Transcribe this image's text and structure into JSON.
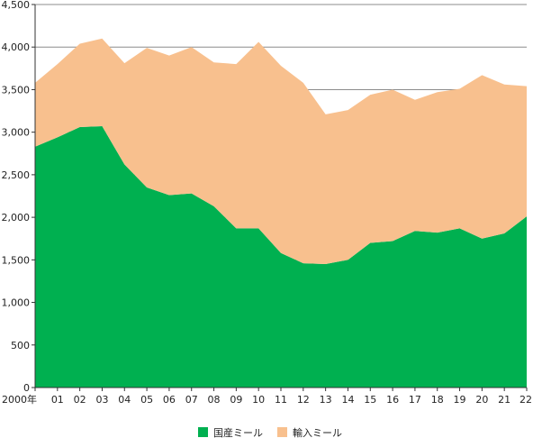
{
  "chart_data": {
    "type": "area",
    "stacked": true,
    "title": "",
    "xlabel": "",
    "ylabel": "",
    "ylim": [
      0,
      4500
    ],
    "yticks": [
      0,
      500,
      1000,
      1500,
      2000,
      2500,
      3000,
      3500,
      4000,
      4500
    ],
    "ytick_labels": [
      "0",
      "500",
      "1,000",
      "1,500",
      "2,000",
      "2,500",
      "3,000",
      "3,500",
      "4,000",
      "4,500"
    ],
    "x_labels": [
      "2000年",
      "01",
      "02",
      "03",
      "04",
      "05",
      "06",
      "07",
      "08",
      "09",
      "10",
      "11",
      "12",
      "13",
      "14",
      "15",
      "16",
      "17",
      "18",
      "19",
      "20",
      "21",
      "22"
    ],
    "grid": "horizontal",
    "legend_position": "bottom",
    "series": [
      {
        "name": "国産ミール",
        "color": "#00b050",
        "values": [
          2830,
          2940,
          3060,
          3070,
          2620,
          2350,
          2260,
          2280,
          2130,
          1870,
          1870,
          1580,
          1460,
          1450,
          1500,
          1700,
          1720,
          1840,
          1820,
          1870,
          1750,
          1810,
          2010
        ]
      },
      {
        "name": "輸入ミール",
        "color": "#f8c08e",
        "values": [
          750,
          860,
          980,
          1030,
          1190,
          1640,
          1640,
          1720,
          1690,
          1930,
          2190,
          2200,
          2120,
          1760,
          1760,
          1740,
          1780,
          1540,
          1650,
          1640,
          1920,
          1750,
          1530
        ]
      }
    ]
  }
}
